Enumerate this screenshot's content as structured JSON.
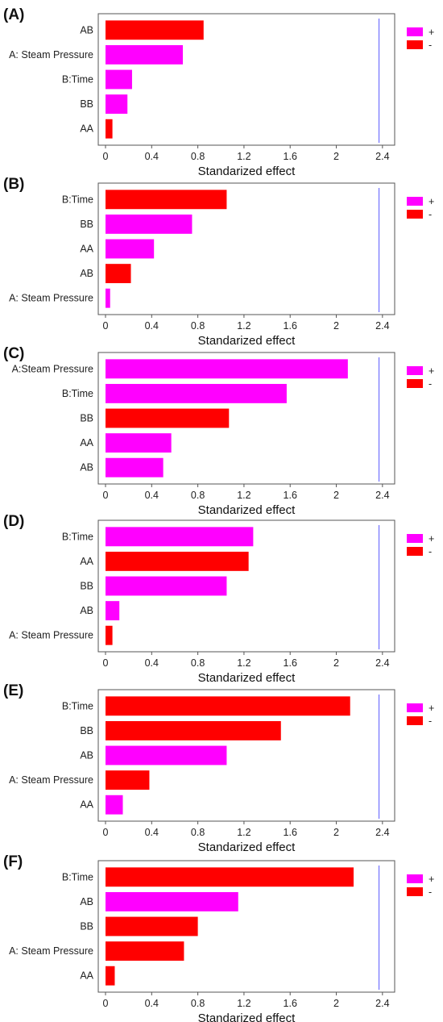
{
  "colors": {
    "positive": "#ff00ff",
    "negative": "#ff0000",
    "reference_line": "#8080ff",
    "axis": "#555555"
  },
  "chart_data": [
    {
      "panel_label": "(A)",
      "type": "bar",
      "orientation": "horizontal",
      "categories": [
        "AB",
        "A: Steam Pressure",
        "B:Time",
        "BB",
        "AA"
      ],
      "values": [
        0.85,
        0.67,
        0.23,
        0.19,
        0.06
      ],
      "signs": [
        "-",
        "+",
        "+",
        "+",
        "-"
      ],
      "reference_value": 2.37,
      "xlim": [
        0,
        2.45
      ],
      "xticks": [
        "0",
        "0.4",
        "0.8",
        "1.2",
        "1.6",
        "2",
        "2.4"
      ],
      "xlabel": "Standarized effect",
      "legend": {
        "placement": "top-right",
        "entries": [
          {
            "label": "+",
            "sign": "+"
          },
          {
            "label": "-",
            "sign": "-"
          }
        ]
      }
    },
    {
      "panel_label": "(B)",
      "type": "bar",
      "orientation": "horizontal",
      "categories": [
        "B:Time",
        "BB",
        "AA",
        "AB",
        "A: Steam Pressure"
      ],
      "values": [
        1.05,
        0.75,
        0.42,
        0.22,
        0.04
      ],
      "signs": [
        "-",
        "+",
        "+",
        "-",
        "+"
      ],
      "reference_value": 2.37,
      "xlim": [
        0,
        2.45
      ],
      "xticks": [
        "0",
        "0.4",
        "0.8",
        "1.2",
        "1.6",
        "2",
        "2.4"
      ],
      "xlabel": "Standarized effect",
      "legend": {
        "placement": "top-right",
        "entries": [
          {
            "label": "+",
            "sign": "+"
          },
          {
            "label": "-",
            "sign": "-"
          }
        ]
      }
    },
    {
      "panel_label": "(C)",
      "type": "bar",
      "orientation": "horizontal",
      "categories": [
        "A:Steam Pressure",
        "B:Time",
        "BB",
        "AA",
        "AB"
      ],
      "values": [
        2.1,
        1.57,
        1.07,
        0.57,
        0.5
      ],
      "signs": [
        "+",
        "+",
        "-",
        "+",
        "+"
      ],
      "reference_value": 2.37,
      "xlim": [
        0,
        2.45
      ],
      "xticks": [
        "0",
        "0.4",
        "0.8",
        "1.2",
        "1.6",
        "2",
        "2.4"
      ],
      "xlabel": "Standarized effect",
      "legend": {
        "placement": "top-right",
        "entries": [
          {
            "label": "+",
            "sign": "+"
          },
          {
            "label": "-",
            "sign": "-"
          }
        ]
      }
    },
    {
      "panel_label": "(D)",
      "type": "bar",
      "orientation": "horizontal",
      "categories": [
        "B:Time",
        "AA",
        "BB",
        "AB",
        "A: Steam Pressure"
      ],
      "values": [
        1.28,
        1.24,
        1.05,
        0.12,
        0.06
      ],
      "signs": [
        "+",
        "-",
        "+",
        "+",
        "-"
      ],
      "reference_value": 2.37,
      "xlim": [
        0,
        2.45
      ],
      "xticks": [
        "0",
        "0.4",
        "0.8",
        "1.2",
        "1.6",
        "2",
        "2.4"
      ],
      "xlabel": "Standarized effect",
      "legend": {
        "placement": "top-right",
        "entries": [
          {
            "label": "+",
            "sign": "+"
          },
          {
            "label": "-",
            "sign": "-"
          }
        ]
      }
    },
    {
      "panel_label": "(E)",
      "type": "bar",
      "orientation": "horizontal",
      "categories": [
        "B:Time",
        "BB",
        "AB",
        "A: Steam Pressure",
        "AA"
      ],
      "values": [
        2.12,
        1.52,
        1.05,
        0.38,
        0.15
      ],
      "signs": [
        "-",
        "-",
        "+",
        "-",
        "+"
      ],
      "reference_value": 2.37,
      "xlim": [
        0,
        2.45
      ],
      "xticks": [
        "0",
        "0.4",
        "0.8",
        "1.2",
        "1.6",
        "2",
        "2.4"
      ],
      "xlabel": "Standarized effect",
      "legend": {
        "placement": "top-right",
        "entries": [
          {
            "label": "+",
            "sign": "+"
          },
          {
            "label": "-",
            "sign": "-"
          }
        ]
      }
    },
    {
      "panel_label": "(F)",
      "type": "bar",
      "orientation": "horizontal",
      "categories": [
        "B:Time",
        "AB",
        "BB",
        "A: Steam Pressure",
        "AA"
      ],
      "values": [
        2.15,
        1.15,
        0.8,
        0.68,
        0.08
      ],
      "signs": [
        "-",
        "+",
        "-",
        "-",
        "-"
      ],
      "reference_value": 2.37,
      "xlim": [
        0,
        2.45
      ],
      "xticks": [
        "0",
        "0.4",
        "0.8",
        "1.2",
        "1.6",
        "2",
        "2.4"
      ],
      "xlabel": "Standarized effect",
      "legend": {
        "placement": "top-right",
        "entries": [
          {
            "label": "+",
            "sign": "+"
          },
          {
            "label": "-",
            "sign": "-"
          }
        ]
      }
    }
  ]
}
